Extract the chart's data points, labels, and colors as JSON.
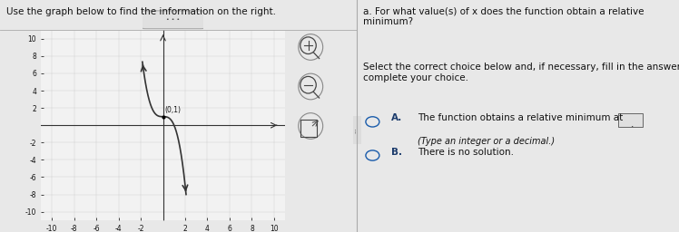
{
  "title": "Use the graph below to find the information on the right.",
  "point_label": "(0,1)",
  "right_q": "a. For what value(s) of x does the function obtain a relative minimum?",
  "right_subtitle": "Select the correct choice below and, if necessary, fill in the answer box to\ncomplete your choice.",
  "choice_A_text": "The function obtains a relative minimum at",
  "choice_A_sub": "(Type an integer or a decimal.)",
  "choice_B_text": "There is no solution.",
  "bg_color": "#e8e8e8",
  "panel_bg": "#f2f2f2",
  "right_bg": "#f2f2f2",
  "text_color": "#111111",
  "blue_text": "#1a3a6b",
  "curve_color": "#333333",
  "axis_color": "#333333",
  "grid_color": "#cccccc",
  "tick_fontsize": 5.5,
  "label_fontsize": 7.0,
  "q_fontsize": 7.5,
  "choice_fontsize": 7.5
}
